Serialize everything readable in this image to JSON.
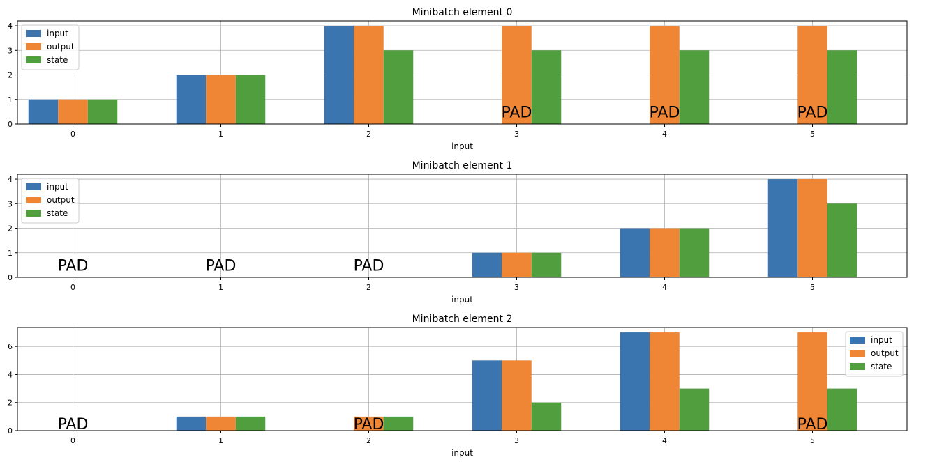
{
  "chart_data": [
    {
      "type": "bar",
      "title": "Minibatch element 0",
      "xlabel": "input",
      "ylabel": "",
      "categories": [
        "0",
        "1",
        "2",
        "3",
        "4",
        "5"
      ],
      "ylim": [
        0,
        4.2
      ],
      "yticks": [
        0,
        1,
        2,
        3,
        4
      ],
      "grid": true,
      "legend": "upper left",
      "pad_label": "PAD",
      "pad_positions": [
        3,
        4,
        5
      ],
      "series": [
        {
          "name": "input",
          "color": "#3b75af",
          "values": [
            1,
            2,
            4,
            null,
            null,
            null
          ]
        },
        {
          "name": "output",
          "color": "#ef8636",
          "values": [
            1,
            2,
            4,
            4,
            4,
            4
          ]
        },
        {
          "name": "state",
          "color": "#519e3e",
          "values": [
            1,
            2,
            3,
            3,
            3,
            3
          ]
        }
      ]
    },
    {
      "type": "bar",
      "title": "Minibatch element 1",
      "xlabel": "input",
      "ylabel": "",
      "categories": [
        "0",
        "1",
        "2",
        "3",
        "4",
        "5"
      ],
      "ylim": [
        0,
        4.2
      ],
      "yticks": [
        0,
        1,
        2,
        3,
        4
      ],
      "grid": true,
      "legend": "upper left",
      "pad_label": "PAD",
      "pad_positions": [
        0,
        1,
        2
      ],
      "series": [
        {
          "name": "input",
          "color": "#3b75af",
          "values": [
            null,
            null,
            null,
            1,
            2,
            4
          ]
        },
        {
          "name": "output",
          "color": "#ef8636",
          "values": [
            null,
            null,
            null,
            1,
            2,
            4
          ]
        },
        {
          "name": "state",
          "color": "#519e3e",
          "values": [
            null,
            null,
            null,
            1,
            2,
            3
          ]
        }
      ]
    },
    {
      "type": "bar",
      "title": "Minibatch element 2",
      "xlabel": "input",
      "ylabel": "",
      "categories": [
        "0",
        "1",
        "2",
        "3",
        "4",
        "5"
      ],
      "ylim": [
        0,
        7.35
      ],
      "yticks": [
        0,
        2,
        4,
        6
      ],
      "grid": true,
      "legend": "upper right",
      "pad_label": "PAD",
      "pad_positions": [
        0,
        2,
        5
      ],
      "series": [
        {
          "name": "input",
          "color": "#3b75af",
          "values": [
            null,
            1,
            null,
            5,
            7,
            null
          ]
        },
        {
          "name": "output",
          "color": "#ef8636",
          "values": [
            null,
            1,
            1,
            5,
            7,
            7
          ]
        },
        {
          "name": "state",
          "color": "#519e3e",
          "values": [
            null,
            1,
            1,
            2,
            3,
            3
          ]
        }
      ]
    }
  ]
}
